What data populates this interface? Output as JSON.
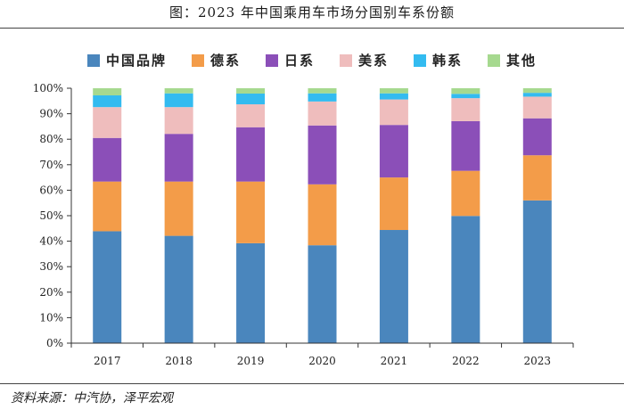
{
  "chart_data": {
    "type": "bar",
    "stacked": true,
    "title": "图：2023 年中国乘用车市场分国别车系份额",
    "categories": [
      "2017",
      "2018",
      "2019",
      "2020",
      "2021",
      "2022",
      "2023"
    ],
    "series": [
      {
        "name": "中国品牌",
        "color": "#4a86bd",
        "values": [
          43.9,
          42.1,
          39.2,
          38.4,
          44.4,
          49.9,
          56.0
        ]
      },
      {
        "name": "德系",
        "color": "#f39c49",
        "values": [
          19.5,
          21.3,
          24.2,
          23.9,
          20.6,
          17.7,
          17.7
        ]
      },
      {
        "name": "日系",
        "color": "#8b4fb8",
        "values": [
          17.1,
          18.7,
          21.3,
          23.1,
          20.6,
          19.5,
          14.5
        ]
      },
      {
        "name": "美系",
        "color": "#efbdbd",
        "values": [
          12.1,
          10.5,
          9.0,
          9.4,
          10.0,
          9.0,
          8.5
        ]
      },
      {
        "name": "韩系",
        "color": "#33bbf0",
        "values": [
          4.6,
          5.4,
          4.2,
          3.2,
          2.4,
          1.7,
          1.5
        ]
      },
      {
        "name": "其他",
        "color": "#a6d98f",
        "values": [
          2.8,
          2.0,
          2.1,
          2.0,
          2.0,
          2.2,
          1.8
        ]
      }
    ],
    "ylim": [
      0,
      100
    ],
    "yticks": [
      "0%",
      "10%",
      "20%",
      "30%",
      "40%",
      "50%",
      "60%",
      "70%",
      "80%",
      "90%",
      "100%"
    ],
    "xlabel": "",
    "ylabel": "",
    "legend_position": "top-center"
  },
  "source": "资料来源：中汽协，泽平宏观"
}
